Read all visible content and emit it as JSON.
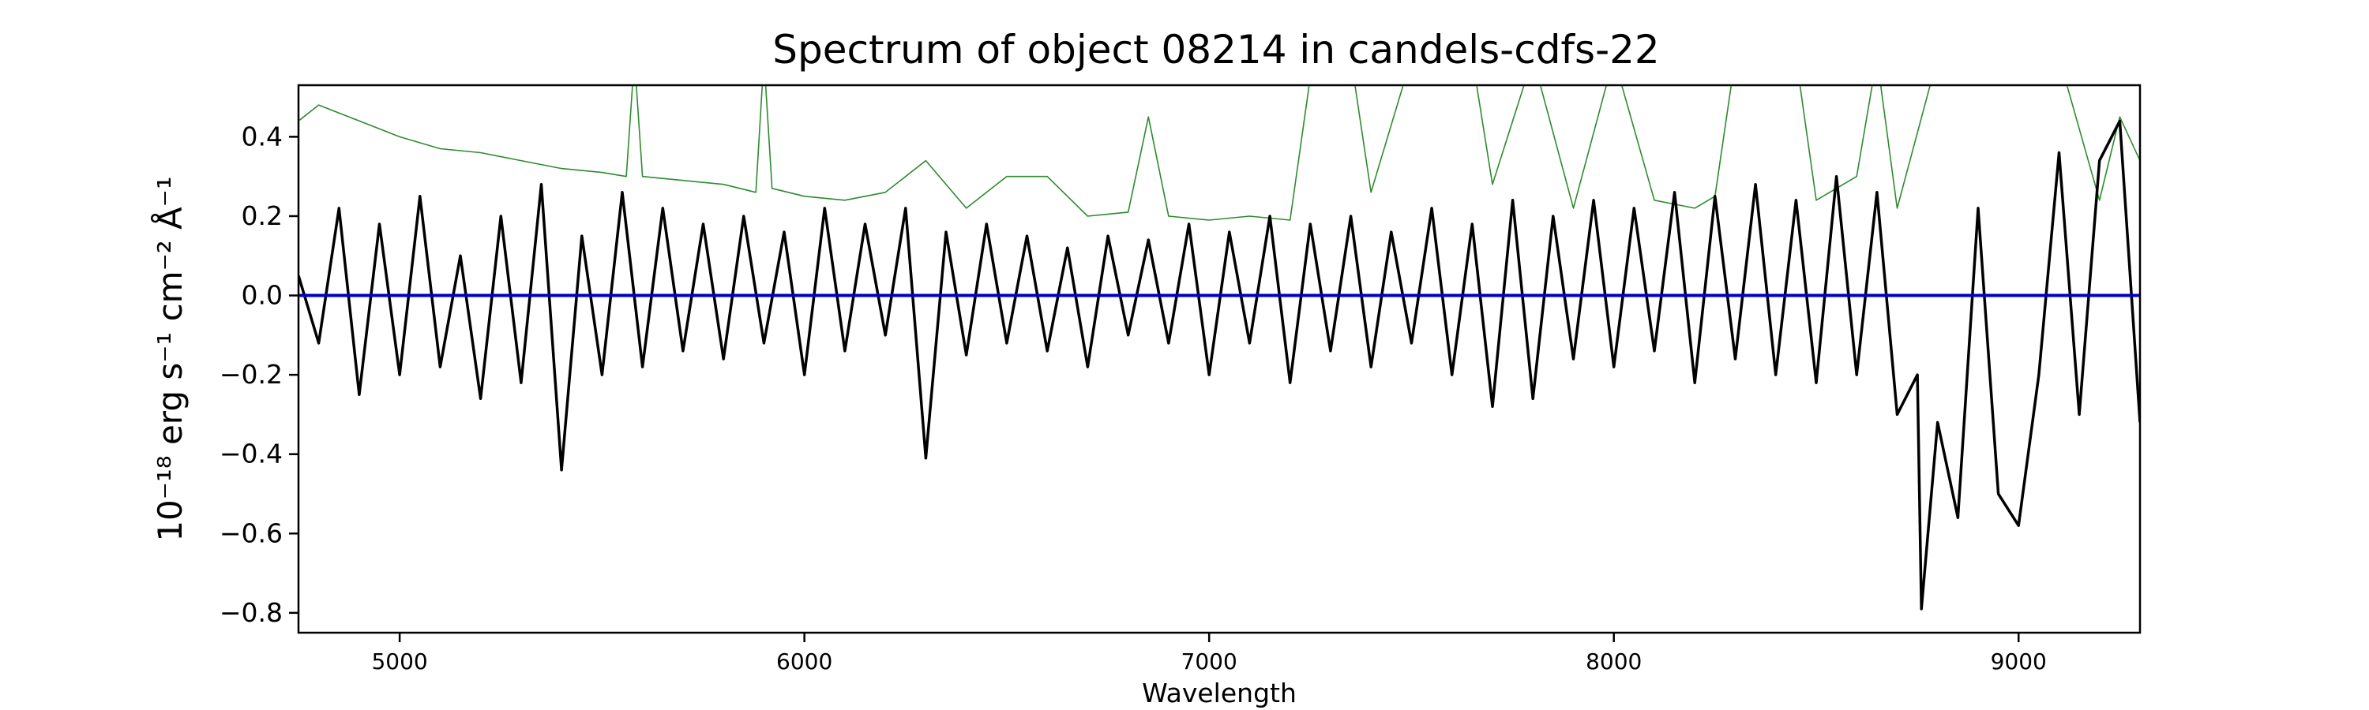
{
  "chart_data": {
    "type": "line",
    "title": "Spectrum of object 08214 in candels-cdfs-22",
    "xlabel": "Wavelength",
    "ylabel": "10⁻¹⁸ erg s⁻¹ cm⁻² Å⁻¹",
    "xlim": [
      4750,
      9300
    ],
    "ylim": [
      -0.85,
      0.53
    ],
    "x_ticks": [
      {
        "value": 5000,
        "label": "5000"
      },
      {
        "value": 6000,
        "label": "6000"
      },
      {
        "value": 7000,
        "label": "7000"
      },
      {
        "value": 8000,
        "label": "8000"
      },
      {
        "value": 9000,
        "label": "9000"
      }
    ],
    "y_ticks": [
      {
        "value": 0.4,
        "label": "0.4"
      },
      {
        "value": 0.2,
        "label": "0.2"
      },
      {
        "value": 0.0,
        "label": "0.0"
      },
      {
        "value": -0.2,
        "label": "−0.2"
      },
      {
        "value": -0.4,
        "label": "−0.4"
      },
      {
        "value": -0.6,
        "label": "−0.6"
      },
      {
        "value": -0.8,
        "label": "−0.8"
      }
    ],
    "grid": false,
    "legend": "none",
    "series": [
      {
        "color": "#000000",
        "x": [
          4750,
          4800,
          4850,
          4900,
          4950,
          5000,
          5050,
          5100,
          5150,
          5200,
          5250,
          5300,
          5350,
          5400,
          5450,
          5500,
          5550,
          5600,
          5650,
          5700,
          5750,
          5800,
          5850,
          5900,
          5950,
          6000,
          6050,
          6100,
          6150,
          6200,
          6250,
          6300,
          6350,
          6400,
          6450,
          6500,
          6550,
          6600,
          6650,
          6700,
          6750,
          6800,
          6850,
          6900,
          6950,
          7000,
          7050,
          7100,
          7150,
          7200,
          7250,
          7300,
          7350,
          7400,
          7450,
          7500,
          7550,
          7600,
          7650,
          7700,
          7750,
          7800,
          7850,
          7900,
          7950,
          8000,
          8050,
          8100,
          8150,
          8200,
          8250,
          8300,
          8350,
          8400,
          8450,
          8500,
          8550,
          8600,
          8650,
          8700,
          8750,
          8760,
          8800,
          8850,
          8900,
          8950,
          9000,
          9050,
          9100,
          9150,
          9200,
          9250,
          9300
        ],
        "y": [
          0.05,
          -0.12,
          0.22,
          -0.25,
          0.18,
          -0.2,
          0.25,
          -0.18,
          0.1,
          -0.26,
          0.2,
          -0.22,
          0.28,
          -0.44,
          0.15,
          -0.2,
          0.26,
          -0.18,
          0.22,
          -0.14,
          0.18,
          -0.16,
          0.2,
          -0.12,
          0.16,
          -0.2,
          0.22,
          -0.14,
          0.18,
          -0.1,
          0.22,
          -0.41,
          0.16,
          -0.15,
          0.18,
          -0.12,
          0.15,
          -0.14,
          0.12,
          -0.18,
          0.15,
          -0.1,
          0.14,
          -0.12,
          0.18,
          -0.2,
          0.16,
          -0.12,
          0.2,
          -0.22,
          0.18,
          -0.14,
          0.2,
          -0.18,
          0.16,
          -0.12,
          0.22,
          -0.2,
          0.18,
          -0.28,
          0.24,
          -0.26,
          0.2,
          -0.16,
          0.24,
          -0.18,
          0.22,
          -0.14,
          0.26,
          -0.22,
          0.25,
          -0.16,
          0.28,
          -0.2,
          0.24,
          -0.22,
          0.3,
          -0.2,
          0.26,
          -0.3,
          -0.2,
          -0.79,
          -0.32,
          -0.56,
          0.22,
          -0.5,
          -0.58,
          -0.2,
          0.36,
          -0.3,
          0.34,
          0.44,
          -0.32
        ]
      },
      {
        "color": "#0000cc",
        "x": [
          4750,
          9300
        ],
        "y": [
          0.0,
          0.0
        ]
      },
      {
        "color": "#2e8b2e",
        "x": [
          4750,
          4800,
          4850,
          4900,
          5000,
          5100,
          5200,
          5300,
          5400,
          5500,
          5560,
          5580,
          5600,
          5700,
          5800,
          5880,
          5900,
          5920,
          6000,
          6100,
          6200,
          6300,
          6400,
          6500,
          6600,
          6700,
          6800,
          6850,
          6900,
          7000,
          7100,
          7200,
          7250,
          7300,
          7350,
          7400,
          7500,
          7550,
          7600,
          7650,
          7700,
          7800,
          7900,
          8000,
          8100,
          8200,
          8250,
          8300,
          8350,
          8400,
          8450,
          8500,
          8600,
          8650,
          8700,
          8800,
          8850,
          8900,
          9000,
          9100,
          9200,
          9250,
          9300
        ],
        "y": [
          0.44,
          0.48,
          0.46,
          0.44,
          0.4,
          0.37,
          0.36,
          0.34,
          0.32,
          0.31,
          0.3,
          0.6,
          0.3,
          0.29,
          0.28,
          0.26,
          0.6,
          0.27,
          0.25,
          0.24,
          0.26,
          0.34,
          0.22,
          0.3,
          0.3,
          0.2,
          0.21,
          0.45,
          0.2,
          0.19,
          0.2,
          0.19,
          0.55,
          0.6,
          0.6,
          0.26,
          0.6,
          0.55,
          0.6,
          0.6,
          0.28,
          0.6,
          0.22,
          0.6,
          0.24,
          0.22,
          0.25,
          0.6,
          0.6,
          0.6,
          0.6,
          0.24,
          0.3,
          0.6,
          0.22,
          0.6,
          0.6,
          0.6,
          0.6,
          0.6,
          0.24,
          0.45,
          0.34
        ]
      }
    ]
  }
}
